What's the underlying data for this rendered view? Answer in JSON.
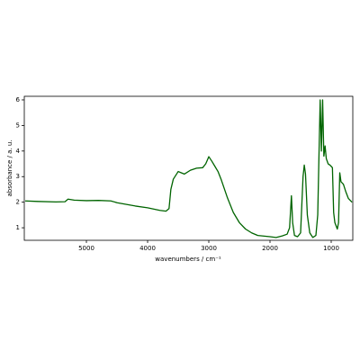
{
  "chart_data": {
    "type": "line",
    "xlabel": "wavenumbers / cm⁻¹",
    "ylabel": "absorbance / a. u.",
    "xlim": [
      6015,
      647
    ],
    "ylim": [
      0.51,
      6.14
    ],
    "xticks": [
      5000,
      4000,
      3000,
      2000,
      1000
    ],
    "yticks": [
      1,
      2,
      3,
      4,
      5,
      6
    ],
    "x": [
      6000,
      5800,
      5500,
      5350,
      5300,
      5200,
      5000,
      4800,
      4600,
      4500,
      4200,
      4000,
      3800,
      3700,
      3650,
      3620,
      3580,
      3500,
      3450,
      3400,
      3300,
      3200,
      3100,
      3050,
      3000,
      2950,
      2900,
      2850,
      2800,
      2700,
      2600,
      2500,
      2400,
      2300,
      2200,
      2000,
      1900,
      1800,
      1720,
      1680,
      1650,
      1630,
      1600,
      1550,
      1500,
      1460,
      1440,
      1420,
      1390,
      1350,
      1300,
      1250,
      1220,
      1200,
      1180,
      1160,
      1140,
      1120,
      1100,
      1080,
      1050,
      1020,
      1000,
      980,
      960,
      940,
      900,
      880,
      860,
      840,
      820,
      800,
      760,
      720,
      660
    ],
    "series": [
      {
        "color": "#006400",
        "values": [
          2.05,
          2.03,
          2.01,
          2.02,
          2.12,
          2.08,
          2.06,
          2.07,
          2.05,
          1.98,
          1.85,
          1.78,
          1.68,
          1.65,
          1.75,
          2.5,
          2.9,
          3.2,
          3.15,
          3.1,
          3.25,
          3.33,
          3.35,
          3.5,
          3.78,
          3.6,
          3.4,
          3.2,
          2.9,
          2.2,
          1.6,
          1.2,
          0.95,
          0.8,
          0.7,
          0.65,
          0.62,
          0.68,
          0.75,
          1.0,
          2.25,
          1.2,
          0.7,
          0.65,
          0.8,
          3.0,
          3.45,
          3.1,
          1.5,
          0.8,
          0.62,
          0.7,
          1.5,
          3.8,
          6.0,
          4.0,
          6.0,
          3.8,
          4.2,
          3.7,
          3.5,
          3.45,
          3.4,
          3.35,
          1.6,
          1.2,
          0.95,
          1.2,
          3.15,
          2.8,
          2.75,
          2.7,
          2.4,
          2.15,
          2.0
        ]
      }
    ]
  }
}
